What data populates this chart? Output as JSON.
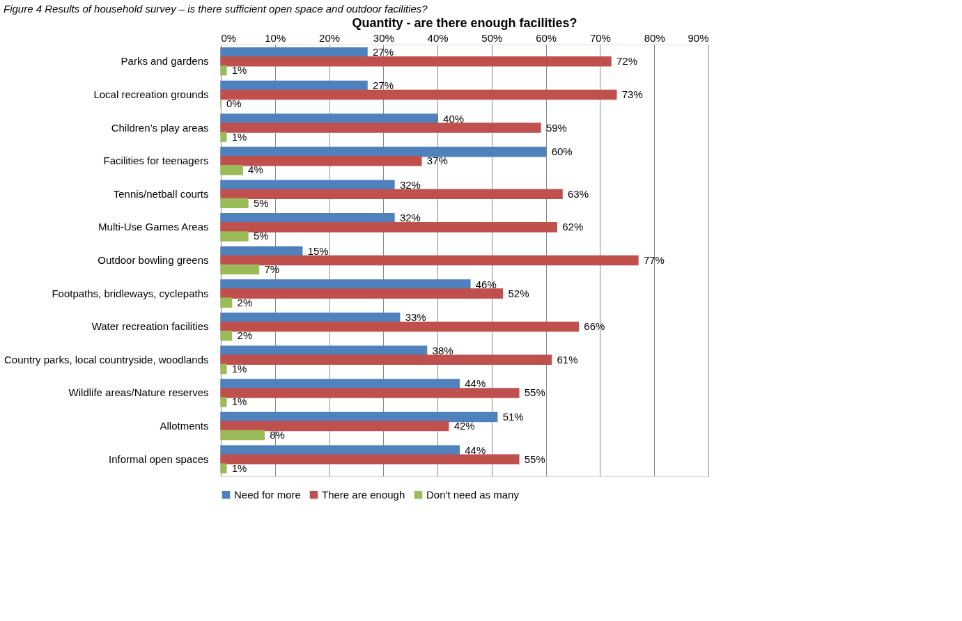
{
  "chart_data": {
    "type": "bar",
    "orientation": "horizontal",
    "title": "Quantity - are there enough facilities?",
    "annotations": [
      "Figure 4     Results of household survey – is there sufficient open space and outdoor facilities?"
    ],
    "categories": [
      "Parks and gardens",
      "Local recreation grounds",
      "Children’s play areas",
      "Facilities for teenagers",
      "Tennis/netball courts",
      "Multi-Use Games Areas",
      "Outdoor bowling greens",
      "Footpaths, bridleways, cyclepaths",
      "Water recreation facilities",
      "Country parks, local countryside, woodlands",
      "Wildlife areas/Nature reserves",
      "Allotments",
      "Informal open spaces"
    ],
    "series": [
      {
        "name": "Need for more",
        "color": "#4f81bd",
        "values": [
          27,
          27,
          40,
          60,
          32,
          32,
          15,
          46,
          33,
          38,
          44,
          51,
          44
        ],
        "value_labels": [
          "27%",
          "27%",
          "40%",
          "60%",
          "32%",
          "32%",
          "15%",
          "46%",
          "33%",
          "38%",
          "44%",
          "51%",
          "44%"
        ]
      },
      {
        "name": "There are enough",
        "color": "#c0504d",
        "values": [
          72,
          73,
          59,
          37,
          63,
          62,
          77,
          52,
          66,
          61,
          55,
          42,
          55
        ],
        "value_labels": [
          "72%",
          "73%",
          "59%",
          "37%",
          "63%",
          "62%",
          "77%",
          "52%",
          "66%",
          "61%",
          "55%",
          "42%",
          "55%"
        ]
      },
      {
        "name": "Don't need as many",
        "color": "#9bbb59",
        "values": [
          1,
          0,
          1,
          4,
          5,
          5,
          7,
          2,
          2,
          1,
          1,
          8,
          1
        ],
        "value_labels": [
          "1%",
          "0%",
          "1%",
          "4%",
          "5%",
          "5%",
          "7%",
          "2%",
          "2%",
          "1%",
          "1%",
          "8%",
          "1%"
        ]
      }
    ],
    "xlim": [
      0,
      90
    ],
    "xticks": [
      {
        "value": 0,
        "label": "0%"
      },
      {
        "value": 10,
        "label": "10%"
      },
      {
        "value": 20,
        "label": "20%"
      },
      {
        "value": 30,
        "label": "30%"
      },
      {
        "value": 40,
        "label": "40%"
      },
      {
        "value": 50,
        "label": "50%"
      },
      {
        "value": 60,
        "label": "60%"
      },
      {
        "value": 70,
        "label": "70%"
      },
      {
        "value": 80,
        "label": "80%"
      },
      {
        "value": 90,
        "label": "90%"
      }
    ],
    "grid": "x",
    "legend": "bottom"
  }
}
